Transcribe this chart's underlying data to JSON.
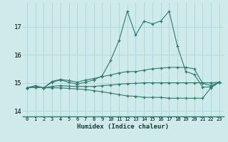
{
  "xlabel": "Humidex (Indice chaleur)",
  "ylabel": "",
  "background_color": "#ceeaea",
  "grid_color": "#b0d8d8",
  "line_color": "#2d7a6e",
  "xlim": [
    -0.5,
    23.5
  ],
  "ylim": [
    13.8,
    17.85
  ],
  "yticks": [
    14,
    15,
    16,
    17
  ],
  "xticks": [
    0,
    1,
    2,
    3,
    4,
    5,
    6,
    7,
    8,
    9,
    10,
    11,
    12,
    13,
    14,
    15,
    16,
    17,
    18,
    19,
    20,
    21,
    22,
    23
  ],
  "series": [
    {
      "x": [
        0,
        1,
        2,
        3,
        4,
        5,
        6,
        7,
        8,
        9,
        10,
        11,
        12,
        13,
        14,
        15,
        16,
        17,
        18,
        19,
        20,
        21,
        22,
        23
      ],
      "y": [
        14.82,
        14.9,
        14.82,
        15.02,
        15.1,
        15.02,
        14.95,
        15.02,
        15.1,
        15.25,
        15.8,
        16.5,
        17.55,
        16.7,
        17.2,
        17.1,
        17.2,
        17.55,
        16.3,
        15.4,
        15.3,
        14.85,
        14.85,
        15.02
      ]
    },
    {
      "x": [
        0,
        1,
        2,
        3,
        4,
        5,
        6,
        7,
        8,
        9,
        10,
        11,
        12,
        13,
        14,
        15,
        16,
        17,
        18,
        19,
        20,
        21,
        22,
        23
      ],
      "y": [
        14.82,
        14.85,
        14.82,
        14.87,
        14.9,
        14.88,
        14.87,
        14.87,
        14.87,
        14.9,
        14.92,
        14.95,
        14.97,
        14.98,
        15.0,
        15.0,
        15.0,
        15.0,
        15.0,
        15.0,
        15.0,
        15.0,
        15.0,
        15.02
      ]
    },
    {
      "x": [
        0,
        1,
        2,
        3,
        4,
        5,
        6,
        7,
        8,
        9,
        10,
        11,
        12,
        13,
        14,
        15,
        16,
        17,
        18,
        19,
        20,
        21,
        22,
        23
      ],
      "y": [
        14.82,
        14.85,
        14.82,
        15.05,
        15.12,
        15.08,
        15.02,
        15.1,
        15.15,
        15.22,
        15.28,
        15.35,
        15.4,
        15.4,
        15.45,
        15.5,
        15.52,
        15.55,
        15.55,
        15.55,
        15.5,
        14.98,
        14.9,
        15.02
      ]
    },
    {
      "x": [
        0,
        1,
        2,
        3,
        4,
        5,
        6,
        7,
        8,
        9,
        10,
        11,
        12,
        13,
        14,
        15,
        16,
        17,
        18,
        19,
        20,
        21,
        22,
        23
      ],
      "y": [
        14.82,
        14.85,
        14.82,
        14.82,
        14.82,
        14.8,
        14.78,
        14.76,
        14.72,
        14.68,
        14.63,
        14.58,
        14.53,
        14.52,
        14.48,
        14.48,
        14.48,
        14.45,
        14.45,
        14.45,
        14.45,
        14.45,
        14.82,
        15.02
      ]
    }
  ]
}
